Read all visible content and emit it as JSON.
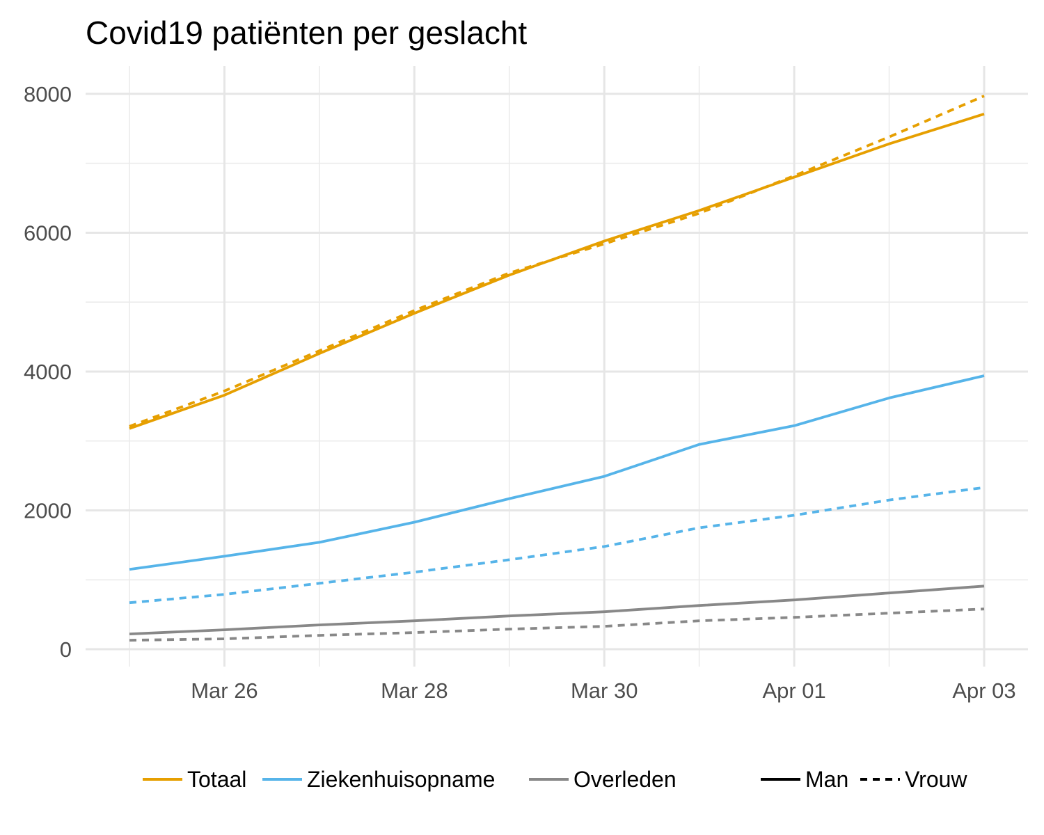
{
  "chart_data": {
    "type": "line",
    "title": "Covid19 patiënten per geslacht",
    "xlabel": "",
    "ylabel": "",
    "x": [
      "2020-03-25",
      "2020-03-26",
      "2020-03-27",
      "2020-03-28",
      "2020-03-29",
      "2020-03-30",
      "2020-03-31",
      "2020-04-01",
      "2020-04-02",
      "2020-04-03"
    ],
    "x_ticks": [
      {
        "date": "2020-03-26",
        "label": "Mar 26"
      },
      {
        "date": "2020-03-28",
        "label": "Mar 28"
      },
      {
        "date": "2020-03-30",
        "label": "Mar 30"
      },
      {
        "date": "2020-04-01",
        "label": "Apr 01"
      },
      {
        "date": "2020-04-03",
        "label": "Apr 03"
      }
    ],
    "y_ticks": [
      0,
      2000,
      4000,
      6000,
      8000
    ],
    "ylim": [
      -250,
      8400
    ],
    "grid": true,
    "legend_position": "bottom",
    "series": [
      {
        "name": "Totaal",
        "sex": "Man",
        "color": "#E69F00",
        "dash": "solid",
        "values": [
          3180,
          3660,
          4260,
          4840,
          5390,
          5880,
          6320,
          6800,
          7280,
          7710
        ]
      },
      {
        "name": "Totaal",
        "sex": "Vrouw",
        "color": "#E69F00",
        "dash": "dotted",
        "values": [
          3210,
          3720,
          4300,
          4880,
          5420,
          5840,
          6280,
          6820,
          7380,
          7970
        ]
      },
      {
        "name": "Ziekenhuisopname",
        "sex": "Man",
        "color": "#56B4E9",
        "dash": "solid",
        "values": [
          1150,
          1340,
          1540,
          1830,
          2170,
          2490,
          2950,
          3220,
          3620,
          3940
        ]
      },
      {
        "name": "Ziekenhuisopname",
        "sex": "Vrouw",
        "color": "#56B4E9",
        "dash": "dotted",
        "values": [
          670,
          790,
          950,
          1110,
          1290,
          1480,
          1750,
          1930,
          2150,
          2330
        ]
      },
      {
        "name": "Overleden",
        "sex": "Man",
        "color": "#888888",
        "dash": "solid",
        "values": [
          220,
          280,
          350,
          410,
          480,
          540,
          630,
          710,
          810,
          910
        ]
      },
      {
        "name": "Overleden",
        "sex": "Vrouw",
        "color": "#888888",
        "dash": "dotted",
        "values": [
          130,
          150,
          200,
          240,
          290,
          330,
          410,
          460,
          520,
          580
        ]
      }
    ],
    "legend": {
      "color_items": [
        {
          "label": "Totaal",
          "color": "#E69F00"
        },
        {
          "label": "Ziekenhuisopname",
          "color": "#56B4E9"
        },
        {
          "label": "Overleden",
          "color": "#888888"
        }
      ],
      "linetype_items": [
        {
          "label": "Man",
          "dash": "solid"
        },
        {
          "label": "Vrouw",
          "dash": "dotted"
        }
      ]
    }
  }
}
